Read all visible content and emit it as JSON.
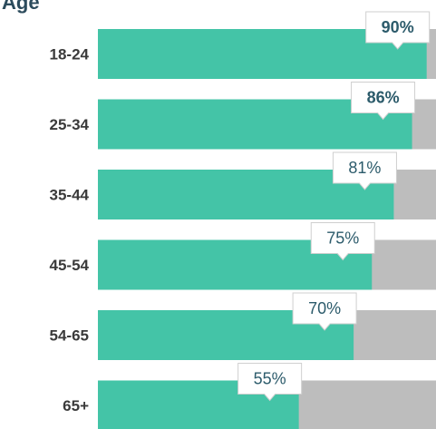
{
  "chart_data": {
    "type": "bar",
    "orientation": "horizontal",
    "stacked": true,
    "ylabel": "Age",
    "categories": [
      "18-24",
      "25-34",
      "35-44",
      "45-54",
      "54-65",
      "65+"
    ],
    "values": [
      90,
      86,
      81,
      75,
      70,
      55
    ],
    "data_labels": [
      "90%",
      "86%",
      "81%",
      "75%",
      "70%",
      "55%"
    ],
    "xlim": [
      0,
      100
    ],
    "grid": false,
    "legend": "none",
    "colors": {
      "value": "#44c4a7",
      "remainder": "#bdbdbd",
      "label_text": "#2c5b6b",
      "category_text": "#3a3a3a",
      "axis_title": "#2c4b5c"
    }
  }
}
